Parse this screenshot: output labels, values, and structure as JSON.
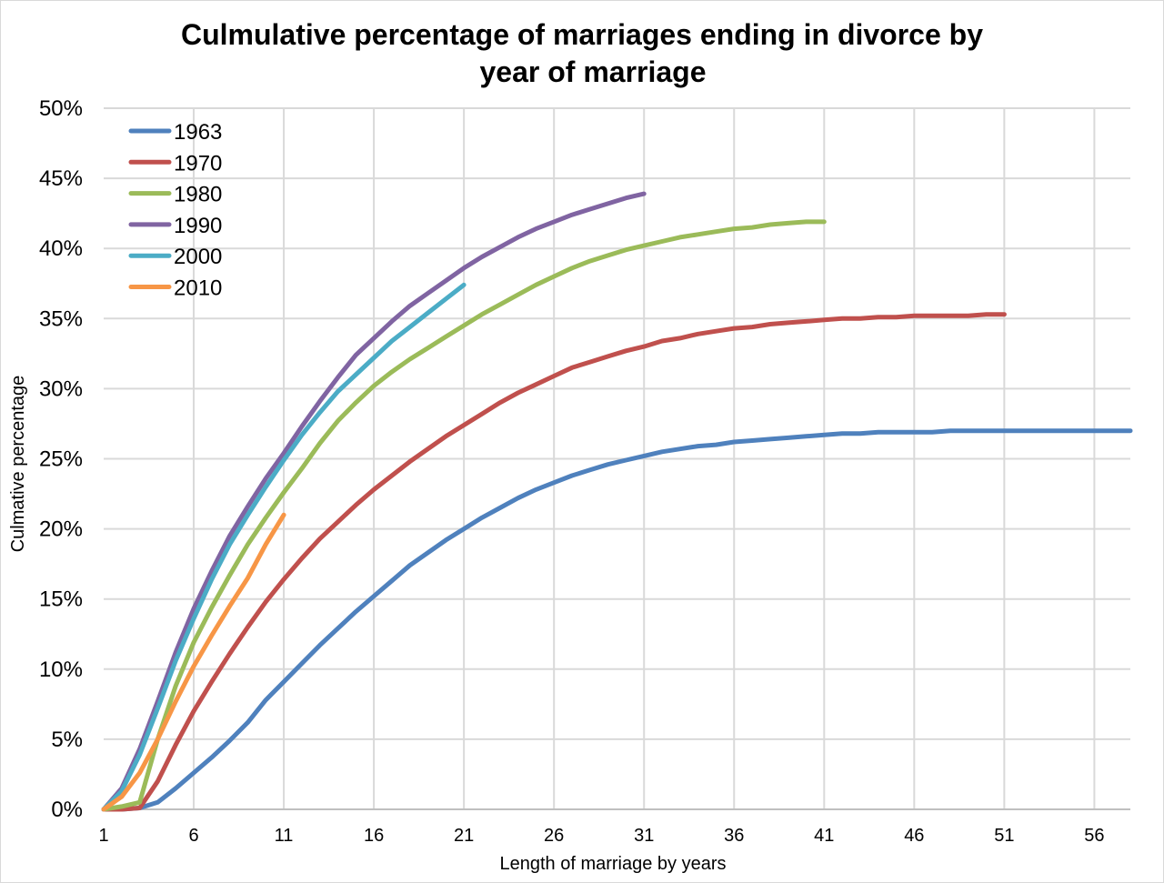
{
  "chart_data": {
    "type": "line",
    "title_lines": [
      "Culmulative percentage of marriages ending in divorce by",
      "year of marriage"
    ],
    "xlabel": "Length of marriage by years",
    "ylabel": "Culmative percentage",
    "xlim": [
      1,
      58
    ],
    "ylim": [
      0,
      50
    ],
    "x_ticks": [
      1,
      6,
      11,
      16,
      21,
      26,
      31,
      36,
      41,
      46,
      51,
      56
    ],
    "x_tick_labels": [
      "1",
      "6",
      "11",
      "16",
      "21",
      "26",
      "31",
      "36",
      "41",
      "46",
      "51",
      "56"
    ],
    "y_ticks": [
      0,
      5,
      10,
      15,
      20,
      25,
      30,
      35,
      40,
      45,
      50
    ],
    "y_tick_labels": [
      "0%",
      "5%",
      "10%",
      "15%",
      "20%",
      "25%",
      "30%",
      "35%",
      "40%",
      "45%",
      "50%"
    ],
    "grid": true,
    "legend_position": "top-left",
    "series": [
      {
        "name": "1963",
        "color": "#4f81bd",
        "x": [
          1,
          2,
          3,
          4,
          5,
          6,
          7,
          8,
          9,
          10,
          11,
          12,
          13,
          14,
          15,
          16,
          17,
          18,
          19,
          20,
          21,
          22,
          23,
          24,
          25,
          26,
          27,
          28,
          29,
          30,
          31,
          32,
          33,
          34,
          35,
          36,
          37,
          38,
          39,
          40,
          41,
          42,
          43,
          44,
          45,
          46,
          47,
          48,
          49,
          50,
          51,
          52,
          53,
          54,
          55,
          56,
          57,
          58
        ],
        "y": [
          0,
          0,
          0.1,
          0.5,
          1.5,
          2.6,
          3.7,
          4.9,
          6.2,
          7.8,
          9.1,
          10.4,
          11.7,
          12.9,
          14.1,
          15.2,
          16.3,
          17.4,
          18.3,
          19.2,
          20,
          20.8,
          21.5,
          22.2,
          22.8,
          23.3,
          23.8,
          24.2,
          24.6,
          24.9,
          25.2,
          25.5,
          25.7,
          25.9,
          26,
          26.2,
          26.3,
          26.4,
          26.5,
          26.6,
          26.7,
          26.8,
          26.8,
          26.9,
          26.9,
          26.9,
          26.9,
          27,
          27,
          27,
          27,
          27,
          27,
          27,
          27,
          27,
          27,
          27
        ]
      },
      {
        "name": "1970",
        "color": "#c0504d",
        "x": [
          1,
          2,
          3,
          4,
          5,
          6,
          7,
          8,
          9,
          10,
          11,
          12,
          13,
          14,
          15,
          16,
          17,
          18,
          19,
          20,
          21,
          22,
          23,
          24,
          25,
          26,
          27,
          28,
          29,
          30,
          31,
          32,
          33,
          34,
          35,
          36,
          37,
          38,
          39,
          40,
          41,
          42,
          43,
          44,
          45,
          46,
          47,
          48,
          49,
          50,
          51
        ],
        "y": [
          0,
          0,
          0.1,
          2,
          4.6,
          7,
          9.1,
          11.1,
          13,
          14.8,
          16.4,
          17.9,
          19.3,
          20.5,
          21.7,
          22.8,
          23.8,
          24.8,
          25.7,
          26.6,
          27.4,
          28.2,
          29,
          29.7,
          30.3,
          30.9,
          31.5,
          31.9,
          32.3,
          32.7,
          33,
          33.4,
          33.6,
          33.9,
          34.1,
          34.3,
          34.4,
          34.6,
          34.7,
          34.8,
          34.9,
          35,
          35,
          35.1,
          35.1,
          35.2,
          35.2,
          35.2,
          35.2,
          35.3,
          35.3
        ]
      },
      {
        "name": "1980",
        "color": "#9bbb59",
        "x": [
          1,
          2,
          3,
          4,
          5,
          6,
          7,
          8,
          9,
          10,
          11,
          12,
          13,
          14,
          15,
          16,
          17,
          18,
          19,
          20,
          21,
          22,
          23,
          24,
          25,
          26,
          27,
          28,
          29,
          30,
          31,
          32,
          33,
          34,
          35,
          36,
          37,
          38,
          39,
          40,
          41
        ],
        "y": [
          0,
          0.2,
          0.5,
          5,
          8.8,
          11.9,
          14.4,
          16.7,
          18.9,
          20.8,
          22.6,
          24.3,
          26.1,
          27.7,
          29,
          30.2,
          31.2,
          32.1,
          32.9,
          33.7,
          34.5,
          35.3,
          36,
          36.7,
          37.4,
          38,
          38.6,
          39.1,
          39.5,
          39.9,
          40.2,
          40.5,
          40.8,
          41,
          41.2,
          41.4,
          41.5,
          41.7,
          41.8,
          41.9,
          41.9
        ]
      },
      {
        "name": "1990",
        "color": "#8064a2",
        "x": [
          1,
          2,
          3,
          4,
          5,
          6,
          7,
          8,
          9,
          10,
          11,
          12,
          13,
          14,
          15,
          16,
          17,
          18,
          19,
          20,
          21,
          22,
          23,
          24,
          25,
          26,
          27,
          28,
          29,
          30,
          31
        ],
        "y": [
          0,
          1.5,
          4.3,
          7.7,
          11.2,
          14.3,
          17,
          19.5,
          21.6,
          23.6,
          25.4,
          27.3,
          29.1,
          30.8,
          32.4,
          33.6,
          34.8,
          35.9,
          36.8,
          37.7,
          38.6,
          39.4,
          40.1,
          40.8,
          41.4,
          41.9,
          42.4,
          42.8,
          43.2,
          43.6,
          43.9
        ]
      },
      {
        "name": "2000",
        "color": "#4bacc6",
        "x": [
          1,
          2,
          3,
          4,
          5,
          6,
          7,
          8,
          9,
          10,
          11,
          12,
          13,
          14,
          15,
          16,
          17,
          18,
          19,
          20,
          21
        ],
        "y": [
          0,
          1.3,
          3.9,
          7.2,
          10.6,
          13.6,
          16.4,
          18.9,
          21,
          23,
          24.9,
          26.7,
          28.3,
          29.8,
          31,
          32.2,
          33.4,
          34.4,
          35.4,
          36.4,
          37.4
        ]
      },
      {
        "name": "2010",
        "color": "#f79646",
        "x": [
          1,
          2,
          3,
          4,
          5,
          6,
          7,
          8,
          9,
          10,
          11
        ],
        "y": [
          0,
          0.9,
          2.6,
          5,
          7.7,
          10.2,
          12.4,
          14.5,
          16.5,
          18.9,
          21
        ]
      }
    ]
  }
}
